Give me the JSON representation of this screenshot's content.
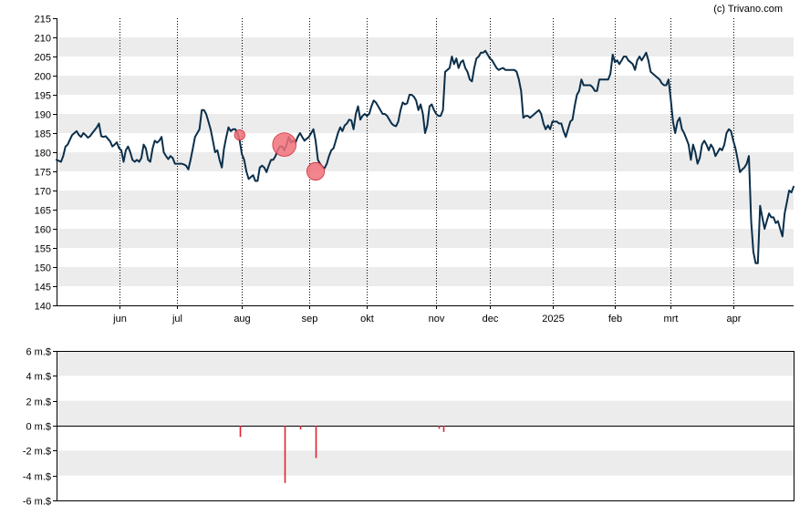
{
  "copyright": "(c) Trivano.com",
  "colors": {
    "price_line": "#0b2f4a",
    "band": "#ececec",
    "bubble_fill": "#f0707a",
    "bubble_stroke": "#d0303a",
    "volume_bar": "#e0202c",
    "grid_vertical": "#000000"
  },
  "chart_data": [
    {
      "type": "line",
      "name": "price",
      "ylim": [
        140,
        215
      ],
      "yticks": [
        140,
        145,
        150,
        155,
        160,
        165,
        170,
        175,
        180,
        185,
        190,
        195,
        200,
        205,
        210,
        215
      ],
      "x_range_days": [
        0,
        330
      ],
      "month_ticks": [
        {
          "label": "jun",
          "day": 28
        },
        {
          "label": "jul",
          "day": 54
        },
        {
          "label": "aug",
          "day": 83
        },
        {
          "label": "sep",
          "day": 113
        },
        {
          "label": "okt",
          "day": 139
        },
        {
          "label": "nov",
          "day": 170
        },
        {
          "label": "dec",
          "day": 194
        },
        {
          "label": "2025",
          "day": 222
        },
        {
          "label": "feb",
          "day": 250
        },
        {
          "label": "mrt",
          "day": 275
        },
        {
          "label": "apr",
          "day": 303
        }
      ],
      "points": [
        [
          0,
          178
        ],
        [
          2,
          177.5
        ],
        [
          3,
          179
        ],
        [
          4,
          181.5
        ],
        [
          5,
          182
        ],
        [
          7,
          184.5
        ],
        [
          9,
          185.5
        ],
        [
          10,
          184.5
        ],
        [
          11,
          184
        ],
        [
          12,
          185
        ],
        [
          13,
          184.5
        ],
        [
          14,
          183.8
        ],
        [
          15,
          184.2
        ],
        [
          16,
          185
        ],
        [
          18,
          186.5
        ],
        [
          19,
          187.5
        ],
        [
          20,
          184.2
        ],
        [
          21,
          184
        ],
        [
          22,
          184.2
        ],
        [
          23,
          183.5
        ],
        [
          24,
          182.8
        ],
        [
          25,
          181.5
        ],
        [
          26,
          182
        ],
        [
          27,
          182.6
        ],
        [
          28,
          181
        ],
        [
          29,
          180.5
        ],
        [
          30,
          177.5
        ],
        [
          31,
          180.5
        ],
        [
          32,
          181.5
        ],
        [
          33,
          180
        ],
        [
          34,
          178
        ],
        [
          35,
          177.5
        ],
        [
          36,
          178
        ],
        [
          37,
          177.5
        ],
        [
          38,
          178.5
        ],
        [
          39,
          182
        ],
        [
          40,
          181
        ],
        [
          41,
          178
        ],
        [
          42,
          177.5
        ],
        [
          43,
          181
        ],
        [
          44,
          183
        ],
        [
          45,
          182.5
        ],
        [
          46,
          183
        ],
        [
          47,
          184
        ],
        [
          48,
          180
        ],
        [
          49,
          179
        ],
        [
          50,
          178.2
        ],
        [
          51,
          179
        ],
        [
          52,
          178.5
        ],
        [
          53,
          177
        ],
        [
          54,
          177
        ],
        [
          55,
          177
        ],
        [
          56,
          177
        ],
        [
          57,
          176.8
        ],
        [
          58,
          176.5
        ],
        [
          59,
          175.5
        ],
        [
          60,
          178
        ],
        [
          61,
          181
        ],
        [
          62,
          184
        ],
        [
          63,
          185
        ],
        [
          64,
          186
        ],
        [
          65,
          191
        ],
        [
          66,
          191
        ],
        [
          67,
          190
        ],
        [
          68,
          188
        ],
        [
          69,
          186
        ],
        [
          70,
          183
        ],
        [
          71,
          180
        ],
        [
          72,
          180.5
        ],
        [
          73,
          178
        ],
        [
          74,
          176
        ],
        [
          75,
          181
        ],
        [
          76,
          184
        ],
        [
          77,
          186.5
        ],
        [
          78,
          185.5
        ],
        [
          79,
          186
        ],
        [
          80,
          186
        ],
        [
          81,
          185
        ],
        [
          82,
          183
        ],
        [
          83,
          179.5
        ],
        [
          84,
          178
        ],
        [
          85,
          175
        ],
        [
          86,
          173
        ],
        [
          87,
          173.5
        ],
        [
          88,
          174
        ],
        [
          89,
          172.5
        ],
        [
          90,
          172.5
        ],
        [
          91,
          176
        ],
        [
          92,
          176.5
        ],
        [
          93,
          176
        ],
        [
          94,
          174.8
        ],
        [
          95,
          176.5
        ],
        [
          96,
          178
        ],
        [
          97,
          178
        ],
        [
          98,
          179
        ],
        [
          99,
          180.5
        ],
        [
          100,
          181.5
        ],
        [
          101,
          181.5
        ],
        [
          102,
          180.5
        ],
        [
          103,
          182
        ],
        [
          104,
          184
        ],
        [
          105,
          182.5
        ],
        [
          106,
          183
        ],
        [
          107,
          182.5
        ],
        [
          108,
          184
        ],
        [
          109,
          185
        ],
        [
          110,
          184
        ],
        [
          111,
          183
        ],
        [
          112,
          183.5
        ],
        [
          113,
          184
        ],
        [
          114,
          185
        ],
        [
          115,
          186
        ],
        [
          116,
          183
        ],
        [
          117,
          178
        ],
        [
          118,
          177
        ],
        [
          119,
          176.2
        ],
        [
          120,
          175.8
        ],
        [
          121,
          177
        ],
        [
          122,
          179
        ],
        [
          123,
          180.5
        ],
        [
          124,
          181
        ],
        [
          125,
          183
        ],
        [
          126,
          185
        ],
        [
          127,
          186.5
        ],
        [
          128,
          185.5
        ],
        [
          129,
          187
        ],
        [
          130,
          187.5
        ],
        [
          131,
          188.5
        ],
        [
          132,
          188.3
        ],
        [
          133,
          186
        ],
        [
          134,
          190
        ],
        [
          135,
          192
        ],
        [
          136,
          188.5
        ],
        [
          137,
          189.5
        ],
        [
          138,
          190
        ],
        [
          139,
          189.5
        ],
        [
          140,
          190
        ],
        [
          141,
          192
        ],
        [
          142,
          193.5
        ],
        [
          143,
          193
        ],
        [
          144,
          192
        ],
        [
          145,
          191
        ],
        [
          146,
          190
        ],
        [
          147,
          190
        ],
        [
          148,
          189.5
        ],
        [
          149,
          188.5
        ],
        [
          150,
          187.5
        ],
        [
          151,
          187
        ],
        [
          152,
          186.8
        ],
        [
          153,
          188
        ],
        [
          154,
          191
        ],
        [
          155,
          193
        ],
        [
          156,
          192.5
        ],
        [
          157,
          192.8
        ],
        [
          158,
          195
        ],
        [
          159,
          195
        ],
        [
          160,
          194.5
        ],
        [
          161,
          193.5
        ],
        [
          162,
          191
        ],
        [
          163,
          192.5
        ],
        [
          164,
          190
        ],
        [
          165,
          185
        ],
        [
          166,
          187
        ],
        [
          167,
          192
        ],
        [
          168,
          192.5
        ],
        [
          169,
          191
        ],
        [
          170,
          190
        ],
        [
          171,
          189.5
        ],
        [
          172,
          189.5
        ],
        [
          173,
          191
        ],
        [
          174,
          201
        ],
        [
          175,
          201.5
        ],
        [
          176,
          202
        ],
        [
          177,
          205
        ],
        [
          178,
          203
        ],
        [
          179,
          204.5
        ],
        [
          180,
          202
        ],
        [
          181,
          203.5
        ],
        [
          182,
          204
        ],
        [
          183,
          202
        ],
        [
          184,
          201
        ],
        [
          185,
          199
        ],
        [
          186,
          198.5
        ],
        [
          187,
          202
        ],
        [
          188,
          204.5
        ],
        [
          189,
          205
        ],
        [
          190,
          206
        ],
        [
          191,
          206
        ],
        [
          192,
          206.5
        ],
        [
          193,
          205.5
        ],
        [
          194,
          204.5
        ],
        [
          195,
          204
        ],
        [
          196,
          203
        ],
        [
          197,
          202
        ],
        [
          198,
          201.5
        ],
        [
          199,
          201.8
        ],
        [
          200,
          202
        ],
        [
          201,
          201.5
        ],
        [
          202,
          201.5
        ],
        [
          203,
          201.5
        ],
        [
          204,
          201.5
        ],
        [
          205,
          201.5
        ],
        [
          206,
          201
        ],
        [
          207,
          199
        ],
        [
          208,
          196
        ],
        [
          209,
          189
        ],
        [
          210,
          189.5
        ],
        [
          211,
          189.5
        ],
        [
          212,
          189
        ],
        [
          213,
          189.5
        ],
        [
          214,
          190
        ],
        [
          215,
          190.5
        ],
        [
          216,
          191
        ],
        [
          217,
          190
        ],
        [
          218,
          187.5
        ],
        [
          219,
          186
        ],
        [
          220,
          187
        ],
        [
          221,
          186
        ],
        [
          222,
          188
        ],
        [
          223,
          188
        ],
        [
          224,
          188
        ],
        [
          225,
          187.5
        ],
        [
          226,
          187.5
        ],
        [
          227,
          185.5
        ],
        [
          228,
          184
        ],
        [
          229,
          186
        ],
        [
          230,
          188
        ],
        [
          231,
          188.5
        ],
        [
          232,
          192
        ],
        [
          233,
          195
        ],
        [
          234,
          196
        ],
        [
          235,
          199
        ],
        [
          236,
          197.5
        ],
        [
          237,
          197.5
        ],
        [
          238,
          197.5
        ],
        [
          239,
          197.5
        ],
        [
          240,
          197
        ],
        [
          241,
          196
        ],
        [
          242,
          196
        ],
        [
          243,
          199
        ],
        [
          244,
          199
        ],
        [
          245,
          199
        ],
        [
          246,
          199
        ],
        [
          247,
          199
        ],
        [
          248,
          200.5
        ],
        [
          249,
          205.5
        ],
        [
          250,
          203.5
        ],
        [
          251,
          204
        ],
        [
          252,
          203
        ],
        [
          253,
          204
        ],
        [
          254,
          205
        ],
        [
          255,
          205
        ],
        [
          256,
          204
        ],
        [
          257,
          203.5
        ],
        [
          258,
          203
        ],
        [
          259,
          201.5
        ],
        [
          260,
          204
        ],
        [
          261,
          205
        ],
        [
          262,
          204
        ],
        [
          263,
          205
        ],
        [
          264,
          206
        ],
        [
          265,
          204
        ],
        [
          266,
          201
        ],
        [
          267,
          200.5
        ],
        [
          268,
          200
        ],
        [
          269,
          199.5
        ],
        [
          270,
          199
        ],
        [
          271,
          198
        ],
        [
          272,
          197.5
        ],
        [
          273,
          197.5
        ],
        [
          274,
          199
        ],
        [
          275,
          194
        ],
        [
          276,
          188
        ],
        [
          277,
          185
        ],
        [
          278,
          188
        ],
        [
          279,
          189
        ],
        [
          280,
          186
        ],
        [
          281,
          185
        ],
        [
          282,
          183.5
        ],
        [
          283,
          182
        ],
        [
          284,
          178
        ],
        [
          285,
          182
        ],
        [
          286,
          180
        ],
        [
          287,
          177
        ],
        [
          288,
          178.5
        ],
        [
          289,
          182
        ],
        [
          290,
          183
        ],
        [
          291,
          182
        ],
        [
          292,
          180.5
        ],
        [
          293,
          182
        ],
        [
          294,
          181
        ],
        [
          295,
          179
        ],
        [
          296,
          180
        ],
        [
          297,
          181
        ],
        [
          298,
          180.5
        ],
        [
          299,
          182
        ],
        [
          300,
          185
        ],
        [
          301,
          186
        ],
        [
          302,
          185.5
        ],
        [
          303,
          183
        ],
        [
          304,
          181
        ],
        [
          305,
          178
        ],
        [
          306,
          174.8
        ],
        [
          307,
          175.5
        ],
        [
          308,
          176
        ],
        [
          309,
          177
        ],
        [
          310,
          179
        ],
        [
          311,
          162
        ],
        [
          312,
          154
        ],
        [
          313,
          151
        ],
        [
          314,
          151
        ],
        [
          315,
          166
        ],
        [
          316,
          163
        ],
        [
          317,
          160
        ],
        [
          318,
          162
        ],
        [
          319,
          164
        ],
        [
          320,
          163
        ],
        [
          321,
          163
        ],
        [
          322,
          161.5
        ],
        [
          323,
          162
        ],
        [
          324,
          160
        ],
        [
          325,
          158
        ],
        [
          326,
          164
        ],
        [
          327,
          167
        ],
        [
          328,
          170
        ],
        [
          329,
          169.5
        ],
        [
          330,
          171
        ]
      ],
      "insider_bubbles": [
        {
          "day": 82,
          "price": 184.5,
          "amount_m": -0.9
        },
        {
          "day": 102,
          "price": 182.0,
          "amount_m": -4.6
        },
        {
          "day": 116,
          "price": 175.0,
          "amount_m": -2.6
        }
      ]
    },
    {
      "type": "bar",
      "name": "insider_volume",
      "unit": "m.$",
      "ylim": [
        -6,
        6
      ],
      "yticks": [
        {
          "value": 6,
          "label": "6 m.$"
        },
        {
          "value": 4,
          "label": "4 m.$"
        },
        {
          "value": 2,
          "label": "2 m.$"
        },
        {
          "value": 0,
          "label": "0 m.$"
        },
        {
          "value": -2,
          "label": "-2 m.$"
        },
        {
          "value": -4,
          "label": "-4 m.$"
        },
        {
          "value": -6,
          "label": "-6 m.$"
        }
      ],
      "bars": [
        {
          "day": 82,
          "value": -0.9
        },
        {
          "day": 102,
          "value": -4.6
        },
        {
          "day": 109,
          "value": -0.3
        },
        {
          "day": 116,
          "value": -2.6
        },
        {
          "day": 171,
          "value": -0.25
        },
        {
          "day": 173,
          "value": -0.5
        }
      ]
    }
  ]
}
